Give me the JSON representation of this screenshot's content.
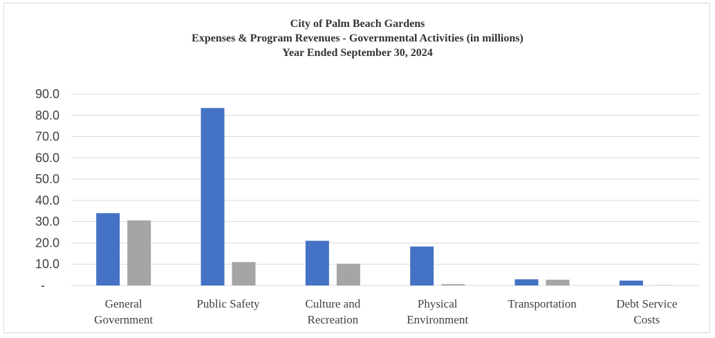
{
  "chart_data": {
    "type": "bar",
    "title": [
      "City of Palm Beach Gardens",
      "Expenses & Program Revenues - Governmental Activities (in millions)",
      "Year Ended September 30, 2024"
    ],
    "xlabel": "",
    "ylabel": "",
    "categories": [
      [
        "General",
        "Government"
      ],
      [
        "Public Safety"
      ],
      [
        "Culture and",
        "Recreation"
      ],
      [
        "Physical",
        "Environment"
      ],
      [
        "Transportation"
      ],
      [
        "Debt Service",
        "Costs"
      ]
    ],
    "series": [
      {
        "color": "#4472c4",
        "values": [
          34.0,
          83.4,
          21.0,
          18.3,
          2.9,
          2.3
        ]
      },
      {
        "color": "#a5a5a5",
        "values": [
          30.6,
          11.0,
          10.2,
          0.6,
          2.7,
          0.1
        ]
      }
    ],
    "ylim": [
      0,
      90
    ],
    "yticks": [
      0,
      10,
      20,
      30,
      40,
      50,
      60,
      70,
      80,
      90
    ],
    "ytick_labels": [
      "-",
      "10.0",
      "20.0",
      "30.0",
      "40.0",
      "50.0",
      "60.0",
      "70.0",
      "80.0",
      "90.0"
    ],
    "gridlines": true,
    "gridline_color": "#d9d9d9",
    "legend": "none"
  }
}
